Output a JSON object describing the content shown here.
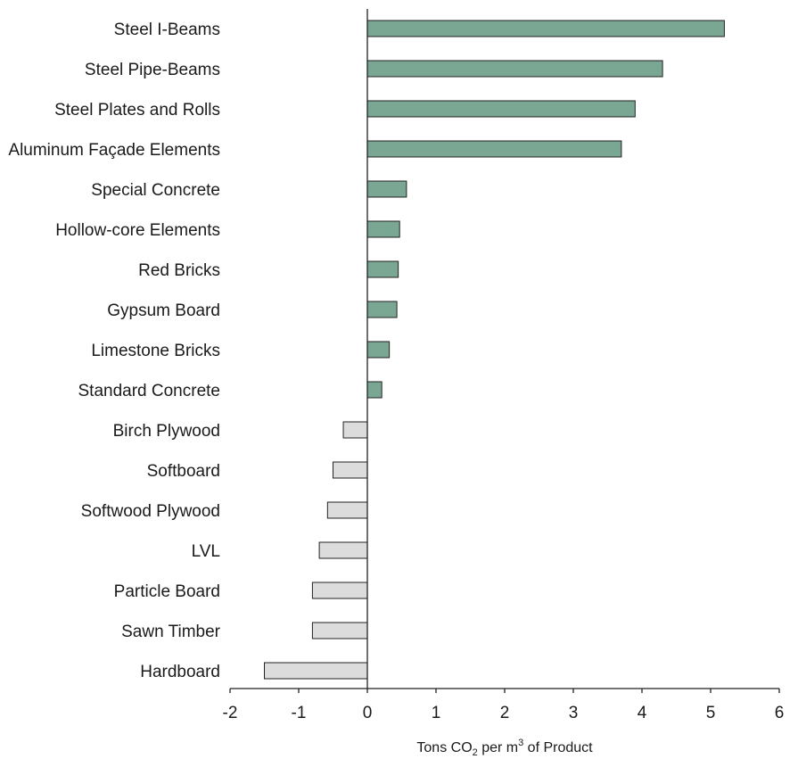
{
  "chart_data": {
    "type": "bar",
    "orientation": "horizontal",
    "title": "",
    "xlabel": {
      "prefix": "Tons CO",
      "sub": "2",
      "middle": " per m",
      "sup": "3",
      "suffix": " of Product"
    },
    "ylabel": "",
    "xlim": [
      -2,
      6
    ],
    "xticks": [
      -2,
      -1,
      0,
      1,
      2,
      3,
      4,
      5,
      6
    ],
    "grid": false,
    "legend": "none",
    "colors": {
      "positive": "#7aa794",
      "negative": "#dcdcdc",
      "outline": "#222222"
    },
    "categories": [
      "Steel I-Beams",
      "Steel Pipe-Beams",
      "Steel Plates and Rolls",
      "Aluminum Façade Elements",
      "Special Concrete",
      "Hollow-core Elements",
      "Red Bricks",
      "Gypsum Board",
      "Limestone Bricks",
      "Standard Concrete",
      "Birch Plywood",
      "Softboard",
      "Softwood Plywood",
      "LVL",
      "Particle Board",
      "Sawn Timber",
      "Hardboard"
    ],
    "values": [
      5.2,
      4.3,
      3.9,
      3.7,
      0.57,
      0.47,
      0.45,
      0.43,
      0.32,
      0.21,
      -0.35,
      -0.5,
      -0.58,
      -0.7,
      -0.8,
      -0.8,
      -1.5
    ]
  }
}
